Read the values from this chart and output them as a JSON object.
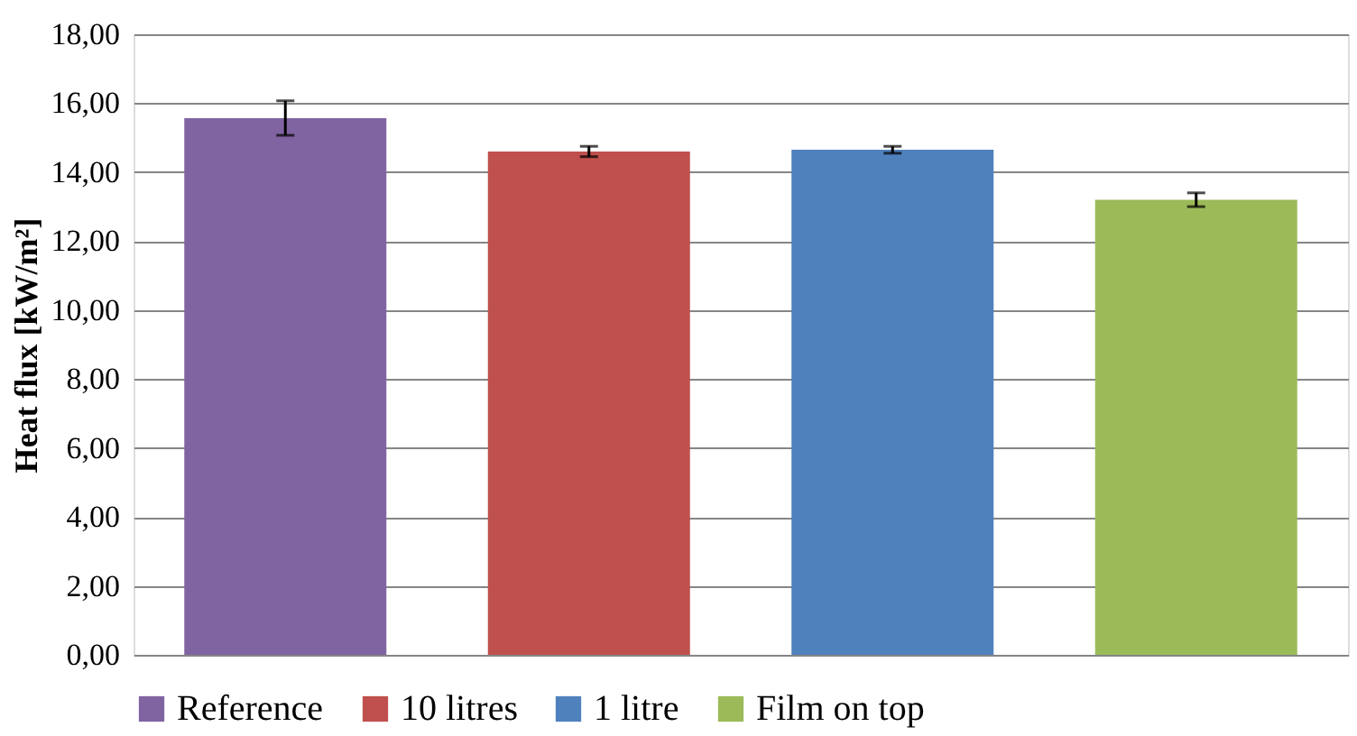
{
  "chart_data": {
    "type": "bar",
    "ylabel": "Heat flux [kW/m²]",
    "categories": [
      null,
      null,
      null,
      null
    ],
    "series": [
      {
        "name": "Reference",
        "color": "#8064a2",
        "values": [
          15.57,
          null,
          null,
          null
        ],
        "errors": [
          0.5,
          null,
          null,
          null
        ]
      },
      {
        "name": "10 litres",
        "color": "#c0504d",
        "values": [
          null,
          14.6,
          null,
          null
        ],
        "errors": [
          null,
          0.15,
          null,
          null
        ]
      },
      {
        "name": "1 litre",
        "color": "#4f81bd",
        "values": [
          null,
          null,
          14.65,
          null
        ],
        "errors": [
          null,
          null,
          0.1,
          null
        ]
      },
      {
        "name": "Film on top",
        "color": "#9bbb59",
        "values": [
          null,
          null,
          null,
          13.2
        ],
        "errors": [
          null,
          null,
          null,
          0.2
        ]
      }
    ],
    "ylim": [
      0,
      18
    ],
    "yticks": [
      {
        "value": 0,
        "label": "0,00"
      },
      {
        "value": 2,
        "label": "2,00"
      },
      {
        "value": 4,
        "label": "4,00"
      },
      {
        "value": 6,
        "label": "6,00"
      },
      {
        "value": 8,
        "label": "8,00"
      },
      {
        "value": 10,
        "label": "10,00"
      },
      {
        "value": 12,
        "label": "12,00"
      },
      {
        "value": 14,
        "label": "14,00"
      },
      {
        "value": 16,
        "label": "16,00"
      },
      {
        "value": 18,
        "label": "18,00"
      }
    ],
    "grid": "y",
    "legend": "bottom"
  }
}
